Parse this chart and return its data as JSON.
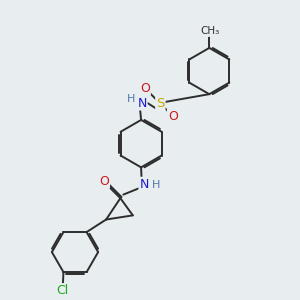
{
  "bg_color": "#e8edf0",
  "bond_color": "#2d2d2d",
  "bond_width": 1.4,
  "dbo": 0.055,
  "atom_colors": {
    "N": "#1a1acc",
    "O": "#cc1a1a",
    "S": "#ccaa00",
    "Cl": "#1aaa1a",
    "C": "#2d2d2d",
    "H": "#5577aa"
  },
  "font_size": 8.5,
  "figsize": [
    3.0,
    3.0
  ],
  "dpi": 100
}
